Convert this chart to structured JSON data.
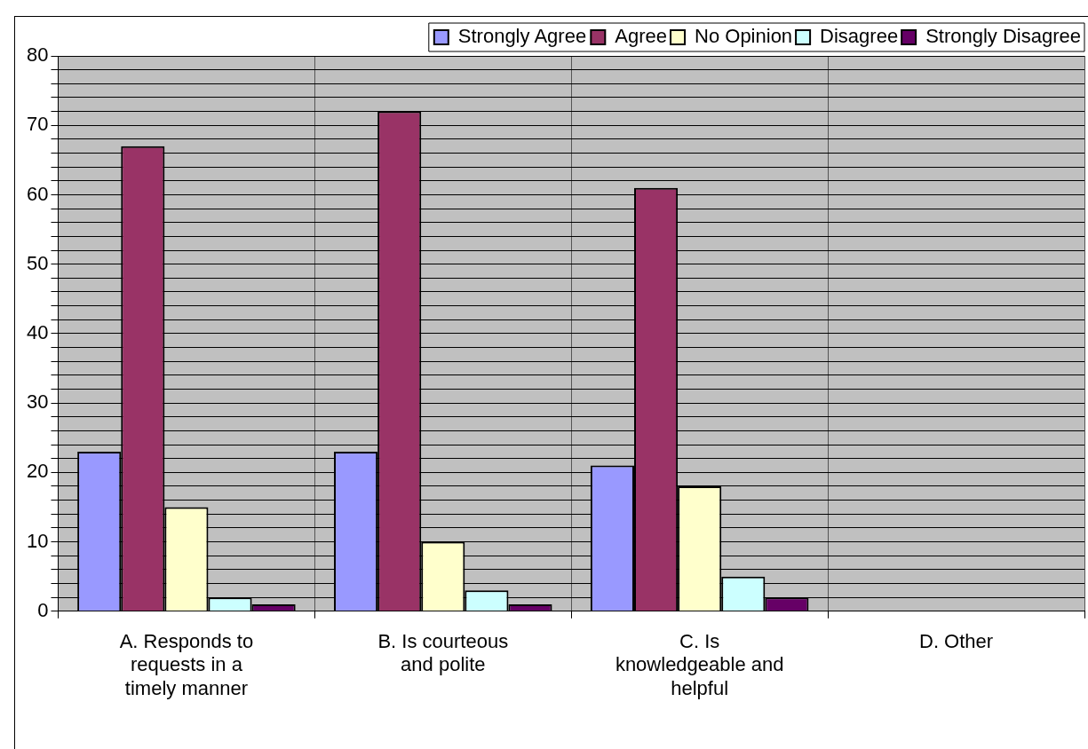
{
  "chart_data": {
    "type": "bar",
    "categories": [
      "A. Responds to requests in a timely manner",
      "B. Is courteous and polite",
      "C. Is knowledgeable and helpful",
      "D. Other"
    ],
    "series": [
      {
        "name": "Strongly Agree",
        "color": "#9999ff",
        "values": [
          23,
          23,
          21,
          null
        ]
      },
      {
        "name": "Agree",
        "color": "#993366",
        "values": [
          67,
          72,
          61,
          null
        ]
      },
      {
        "name": "No Opinion",
        "color": "#ffffcc",
        "values": [
          15,
          10,
          18,
          null
        ]
      },
      {
        "name": "Disagree",
        "color": "#ccffff",
        "values": [
          2,
          3,
          5,
          null
        ]
      },
      {
        "name": "Strongly Disagree",
        "color": "#660066",
        "values": [
          1,
          1,
          2,
          null
        ]
      }
    ],
    "ylim": [
      0,
      80
    ],
    "yticks": [
      0,
      {
        "value": 2,
        "label": null
      },
      {
        "value": 4,
        "label": null
      },
      {
        "value": 6,
        "label": null
      },
      {
        "value": 8,
        "label": null
      },
      10,
      {
        "value": 12,
        "label": null
      },
      {
        "value": 14,
        "label": null
      },
      {
        "value": 16,
        "label": null
      },
      {
        "value": 18,
        "label": null
      },
      20,
      {
        "value": 22,
        "label": null
      },
      {
        "value": 24,
        "label": null
      },
      {
        "value": 26,
        "label": null
      },
      {
        "value": 28,
        "label": null
      },
      30,
      {
        "value": 32,
        "label": null
      },
      {
        "value": 34,
        "label": null
      },
      {
        "value": 36,
        "label": null
      },
      {
        "value": 38,
        "label": null
      },
      40,
      {
        "value": 42,
        "label": null
      },
      {
        "value": 44,
        "label": null
      },
      {
        "value": 46,
        "label": null
      },
      {
        "value": 48,
        "label": null
      },
      50,
      {
        "value": 52,
        "label": null
      },
      {
        "value": 54,
        "label": null
      },
      {
        "value": 56,
        "label": null
      },
      {
        "value": 58,
        "label": null
      },
      60,
      {
        "value": 62,
        "label": null
      },
      {
        "value": 64,
        "label": null
      },
      {
        "value": 66,
        "label": null
      },
      {
        "value": 68,
        "label": null
      },
      70,
      {
        "value": 72,
        "label": null
      },
      {
        "value": 74,
        "label": null
      },
      {
        "value": 76,
        "label": null
      },
      {
        "value": 78,
        "label": null
      },
      80
    ],
    "grid": true,
    "legend": "top right"
  }
}
